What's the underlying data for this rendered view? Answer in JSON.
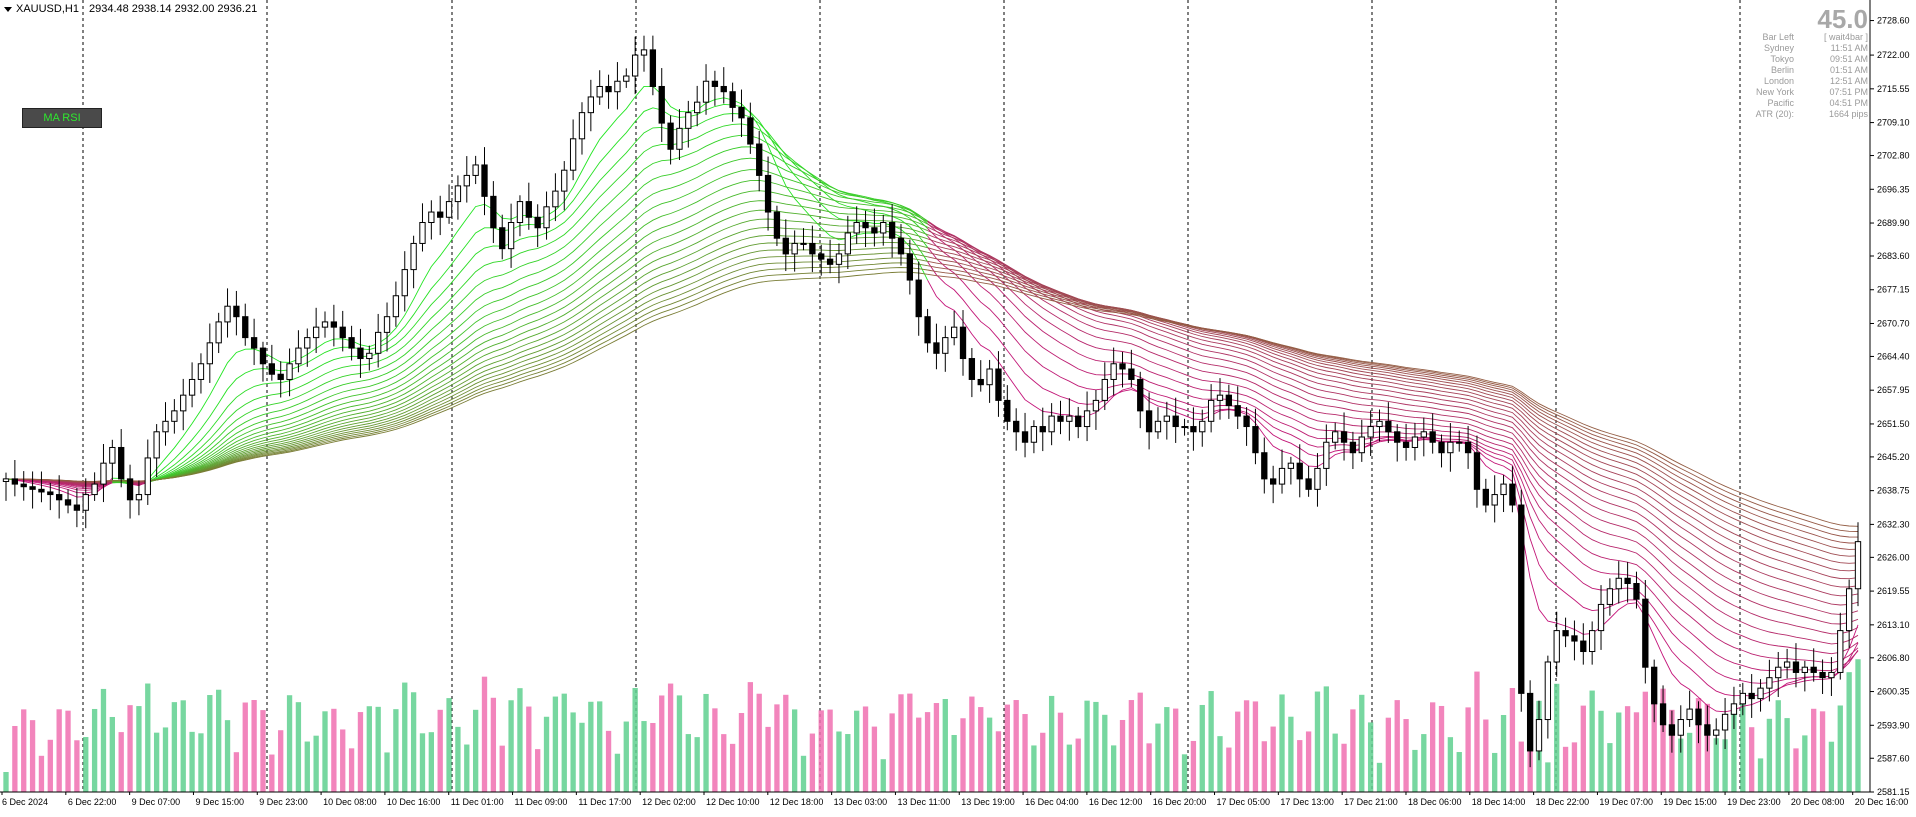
{
  "header": {
    "symbol": "XAUUSD,H1",
    "ohlc": "2934.48 2938.14 2932.00 2936.21"
  },
  "button": {
    "label": "MA RSI"
  },
  "info_panel": {
    "big_value": "45.0",
    "rows": [
      {
        "k": "Bar Left",
        "v": "[ wait4bar ]"
      },
      {
        "k": "Sydney",
        "v": "11:51 AM"
      },
      {
        "k": "Tokyo",
        "v": "09:51 AM"
      },
      {
        "k": "Berlin",
        "v": "01:51 AM"
      },
      {
        "k": "London",
        "v": "12:51 AM"
      },
      {
        "k": "New York",
        "v": "07:51 PM"
      },
      {
        "k": "Pacific",
        "v": "04:51 PM"
      },
      {
        "k": "ATR (20):",
        "v": "1664 pips"
      }
    ]
  },
  "colors": {
    "bull_ribbon": "#22e622",
    "bear_ribbon": "#c4147a",
    "neutral_ribbon": "#8a6a3a",
    "volume_up": "#5fd08f",
    "volume_down": "#f070b0",
    "grid": "#000000"
  },
  "chart_data": {
    "type": "candlestick",
    "y_range": [
      2581.15,
      2731.0
    ],
    "y_ticks": [
      "2728.60",
      "2722.00",
      "2715.55",
      "2709.10",
      "2702.80",
      "2696.35",
      "2689.90",
      "2683.60",
      "2677.15",
      "2670.70",
      "2664.40",
      "2657.95",
      "2651.50",
      "2645.20",
      "2638.75",
      "2632.30",
      "2626.00",
      "2619.55",
      "2613.10",
      "2606.80",
      "2600.35",
      "2593.90",
      "2587.60",
      "2581.15"
    ],
    "x_ticks": [
      "6 Dec 2024",
      "6 Dec 22:00",
      "9 Dec 07:00",
      "9 Dec 15:00",
      "9 Dec 23:00",
      "10 Dec 08:00",
      "10 Dec 16:00",
      "11 Dec 01:00",
      "11 Dec 09:00",
      "11 Dec 17:00",
      "12 Dec 02:00",
      "12 Dec 10:00",
      "12 Dec 18:00",
      "13 Dec 03:00",
      "13 Dec 11:00",
      "13 Dec 19:00",
      "16 Dec 04:00",
      "16 Dec 12:00",
      "16 Dec 20:00",
      "17 Dec 05:00",
      "17 Dec 13:00",
      "17 Dec 21:00",
      "18 Dec 06:00",
      "18 Dec 14:00",
      "18 Dec 22:00",
      "19 Dec 07:00",
      "19 Dec 15:00",
      "19 Dec 23:00",
      "20 Dec 08:00",
      "20 Dec 16:00"
    ],
    "close_path": [
      2641.0,
      2640.0,
      2639.5,
      2639.0,
      2638.5,
      2638.0,
      2637.0,
      2636.0,
      2635.0,
      2638.0,
      2640.0,
      2644.0,
      2647.0,
      2641.0,
      2637.0,
      2638.0,
      2645.0,
      2650.0,
      2652.0,
      2654.0,
      2657.0,
      2660.0,
      2663.0,
      2667.0,
      2671.0,
      2674.0,
      2672.0,
      2668.0,
      2666.0,
      2663.0,
      2661.0,
      2660.0,
      2663.0,
      2666.0,
      2668.0,
      2670.0,
      2671.0,
      2670.0,
      2668.0,
      2666.0,
      2664.0,
      2665.0,
      2669.0,
      2672.0,
      2676.0,
      2681.0,
      2686.0,
      2690.0,
      2692.0,
      2691.0,
      2694.0,
      2697.0,
      2699.0,
      2701.0,
      2695.0,
      2689.0,
      2685.0,
      2690.0,
      2694.0,
      2691.0,
      2689.0,
      2693.0,
      2696.0,
      2700.0,
      2706.0,
      2711.0,
      2714.0,
      2716.0,
      2715.0,
      2717.0,
      2718.0,
      2722.0,
      2723.0,
      2716.0,
      2709.0,
      2704.0,
      2708.0,
      2711.0,
      2713.0,
      2717.0,
      2716.0,
      2715.0,
      2712.0,
      2710.0,
      2705.0,
      2699.0,
      2692.0,
      2687.0,
      2684.0,
      2686.0,
      2686.0,
      2684.0,
      2683.0,
      2682.0,
      2684.0,
      2688.0,
      2690.0,
      2689.0,
      2688.0,
      2690.0,
      2687.0,
      2684.0,
      2679.0,
      2672.0,
      2667.0,
      2665.0,
      2668.0,
      2670.0,
      2664.0,
      2660.0,
      2659.0,
      2662.0,
      2656.0,
      2652.0,
      2650.0,
      2648.0,
      2651.0,
      2650.0,
      2653.0,
      2652.0,
      2653.0,
      2651.0,
      2654.0,
      2656.0,
      2660.0,
      2663.0,
      2662.0,
      2660.0,
      2654.0,
      2650.0,
      2652.0,
      2653.0,
      2651.0,
      2651.0,
      2650.0,
      2652.0,
      2656.0,
      2657.0,
      2655.0,
      2653.0,
      2651.0,
      2646.0,
      2641.0,
      2640.0,
      2643.0,
      2644.0,
      2641.0,
      2639.0,
      2643.0,
      2648.0,
      2650.0,
      2648.0,
      2646.0,
      2649.0,
      2651.0,
      2652.0,
      2650.0,
      2648.0,
      2647.0,
      2649.0,
      2650.0,
      2648.0,
      2646.0,
      2648.0,
      2648.0,
      2646.0,
      2639.0,
      2636.0,
      2638.0,
      2640.0,
      2636.0,
      2600.0,
      2589.0,
      2595.0,
      2606.0,
      2612.0,
      2611.0,
      2610.0,
      2608.0,
      2612.0,
      2617.0,
      2620.0,
      2622.0,
      2621.0,
      2618.0,
      2605.0,
      2598.0,
      2594.0,
      2592.0,
      2595.0,
      2597.0,
      2594.0,
      2592.0,
      2593.0,
      2596.0,
      2598.0,
      2600.0,
      2599.0,
      2601.0,
      2603.0,
      2605.0,
      2606.0,
      2604.0,
      2605.0,
      2604.0,
      2603.0,
      2604.0,
      2612.0,
      2620.0,
      2629.0
    ]
  }
}
